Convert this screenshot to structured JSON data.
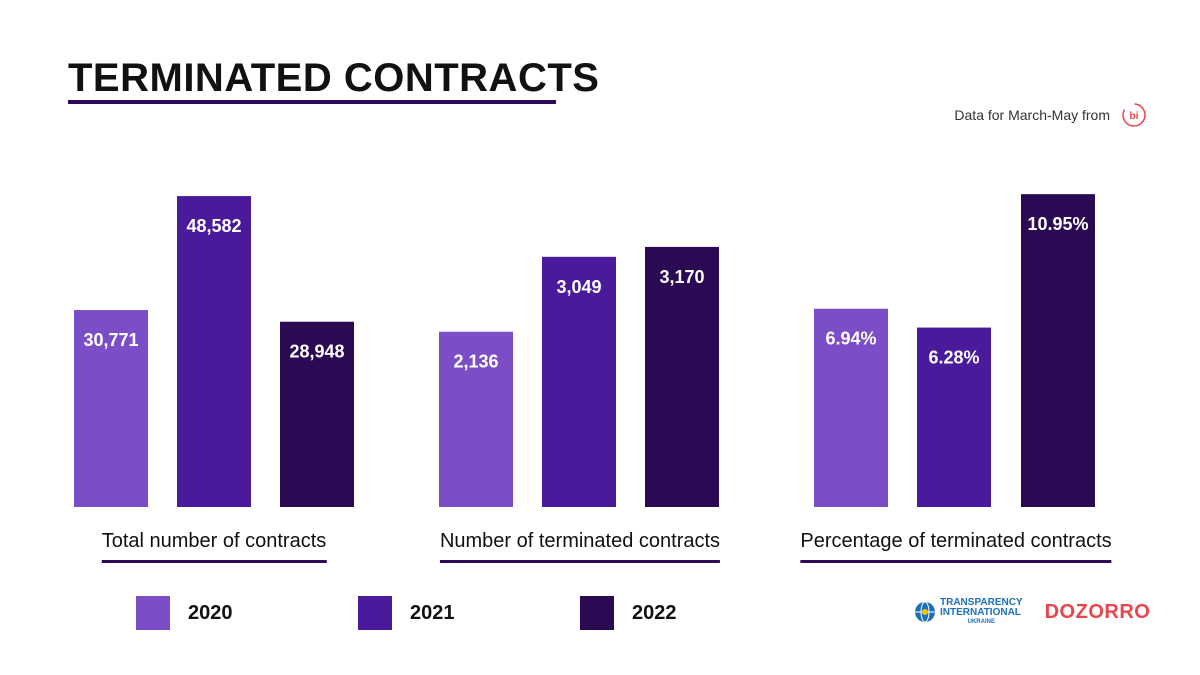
{
  "title": "TERMINATED CONTRACTS",
  "source": {
    "text": "Data for March-May from",
    "logo_icon": "bi-logo-icon",
    "logo_text": "bi"
  },
  "colors": {
    "y2020": "#7b4ec7",
    "y2021": "#4a1a9c",
    "y2022": "#2b0a54",
    "underline": "#2d0a5a",
    "dozorro": "#e8454e",
    "ti": "#1d70b8"
  },
  "chart_data": [
    {
      "type": "bar",
      "title": "Total number of contracts",
      "categories": [
        "2020",
        "2021",
        "2022"
      ],
      "values": [
        30771,
        48582,
        28948
      ],
      "labels": [
        "30,771",
        "48,582",
        "28,948"
      ],
      "ylim": [
        0,
        50000
      ]
    },
    {
      "type": "bar",
      "title": "Number of terminated contracts",
      "categories": [
        "2020",
        "2021",
        "2022"
      ],
      "values": [
        2136,
        3049,
        3170
      ],
      "labels": [
        "2,136",
        "3,049",
        "3,170"
      ],
      "ylim": [
        0,
        3900
      ]
    },
    {
      "type": "bar",
      "title": "Percentage of terminated contracts",
      "categories": [
        "2020",
        "2021",
        "2022"
      ],
      "values": [
        6.94,
        6.28,
        10.95
      ],
      "labels": [
        "6.94%",
        "6.28%",
        "10.95%"
      ],
      "ylim": [
        0,
        11.2
      ]
    }
  ],
  "legend": [
    {
      "label": "2020"
    },
    {
      "label": "2021"
    },
    {
      "label": "2022"
    }
  ],
  "logos": {
    "ti_line1": "TRANSPARENCY",
    "ti_line2": "INTERNATIONAL",
    "ti_line3": "UKRAINE",
    "dozorro": "DOZORRO"
  }
}
